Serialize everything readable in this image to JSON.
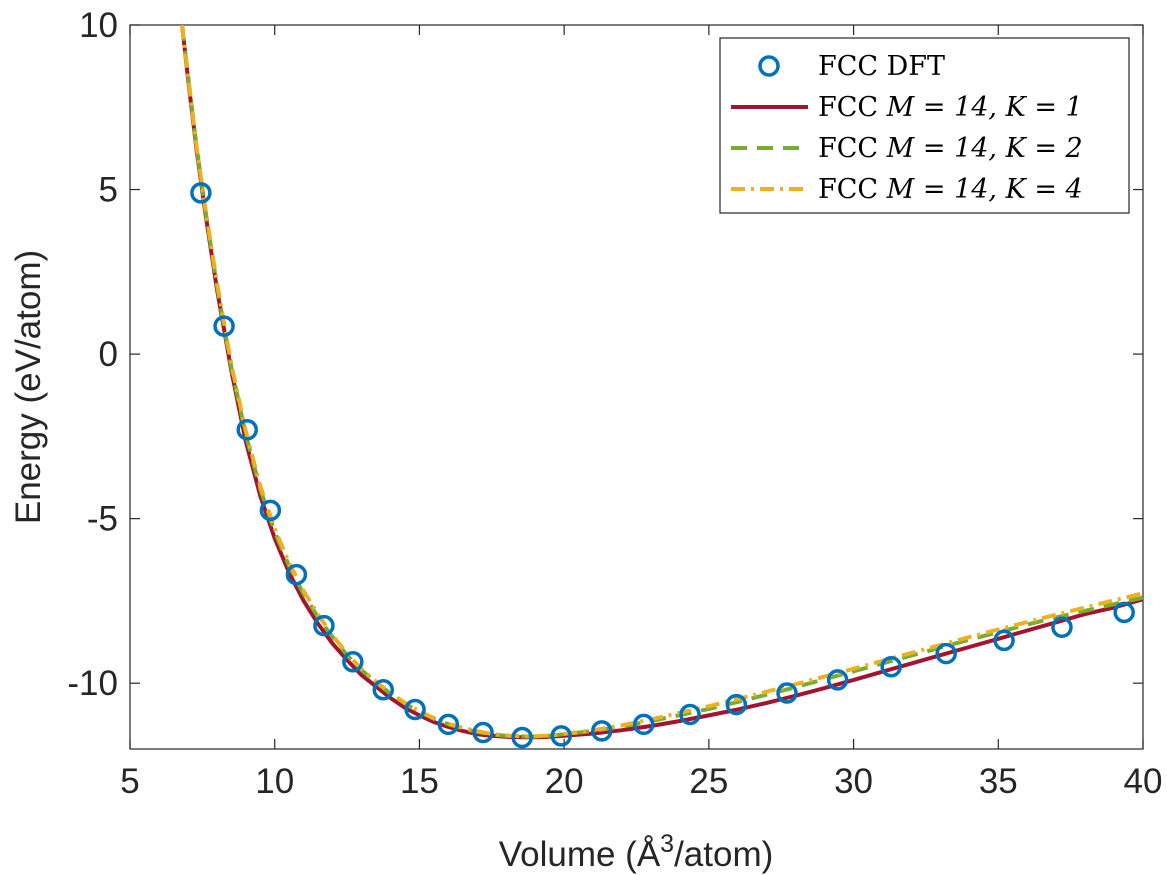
{
  "chart_data": {
    "type": "line",
    "title": "",
    "xlabel": "Volume (Å",
    "xlabel_sup": "3",
    "xlabel_suffix": "/atom)",
    "ylabel": "Energy (eV/atom)",
    "xlim": [
      5,
      40
    ],
    "ylim": [
      -12,
      10
    ],
    "xticks": [
      5,
      10,
      15,
      20,
      25,
      30,
      35,
      40
    ],
    "yticks": [
      -10,
      -5,
      0,
      5,
      10
    ],
    "legend_position": "top-right",
    "colors": {
      "dft": "#0072BD",
      "k1": "#A2142F",
      "k2": "#77AC30",
      "k4": "#EDB120"
    },
    "series": [
      {
        "name": "FCC DFT",
        "label_text": "FCC DFT",
        "label_math": "",
        "style": "markers-circle",
        "color_key": "dft",
        "x": [
          7.45,
          8.25,
          9.05,
          9.85,
          10.75,
          11.7,
          12.7,
          13.75,
          14.85,
          16.0,
          17.2,
          18.55,
          19.9,
          21.3,
          22.75,
          24.35,
          25.95,
          27.7,
          29.45,
          31.3,
          33.2,
          35.2,
          37.2,
          39.35
        ],
        "y": [
          4.9,
          0.85,
          -2.3,
          -4.75,
          -6.7,
          -8.25,
          -9.35,
          -10.2,
          -10.8,
          -11.25,
          -11.5,
          -11.65,
          -11.6,
          -11.45,
          -11.25,
          -10.95,
          -10.65,
          -10.3,
          -9.9,
          -9.5,
          -9.1,
          -8.7,
          -8.3,
          -7.85
        ]
      },
      {
        "name": "FCC M = 14, K = 1",
        "label_text": "FCC ",
        "label_math": "M = 14, K = 1",
        "style": "solid",
        "color_key": "k1",
        "x": [
          6.8,
          7.0,
          7.3,
          7.6,
          8.0,
          8.5,
          9.0,
          9.5,
          10.0,
          10.5,
          11.0,
          11.5,
          12.0,
          12.5,
          13.0,
          13.5,
          14.0,
          14.5,
          15.0,
          15.5,
          16.0,
          16.5,
          17.0,
          17.5,
          18.0,
          18.5,
          19.0,
          19.5,
          20.0,
          21.0,
          22.0,
          23.0,
          24.0,
          25.0,
          26.0,
          27.0,
          28.0,
          29.0,
          30.0,
          31.0,
          32.0,
          33.0,
          34.0,
          35.0,
          36.0,
          37.0,
          38.0,
          39.0,
          40.0
        ],
        "y": [
          10.0,
          8.4,
          6.2,
          4.3,
          2.0,
          -0.5,
          -2.65,
          -4.3,
          -5.6,
          -6.65,
          -7.5,
          -8.2,
          -8.8,
          -9.3,
          -9.75,
          -10.1,
          -10.45,
          -10.75,
          -10.98,
          -11.18,
          -11.33,
          -11.45,
          -11.55,
          -11.6,
          -11.63,
          -11.64,
          -11.64,
          -11.63,
          -11.6,
          -11.53,
          -11.43,
          -11.3,
          -11.15,
          -10.98,
          -10.8,
          -10.6,
          -10.38,
          -10.15,
          -9.9,
          -9.65,
          -9.4,
          -9.15,
          -8.9,
          -8.65,
          -8.4,
          -8.15,
          -7.9,
          -7.7,
          -7.45
        ]
      },
      {
        "name": "FCC M = 14, K = 2",
        "label_text": "FCC ",
        "label_math": "M = 14, K = 2",
        "style": "dashed",
        "color_key": "k2",
        "x": [
          6.8,
          7.0,
          7.3,
          7.6,
          8.0,
          8.5,
          9.0,
          9.5,
          10.0,
          10.5,
          11.0,
          11.5,
          12.0,
          12.5,
          13.0,
          13.5,
          14.0,
          14.5,
          15.0,
          15.5,
          16.0,
          16.5,
          17.0,
          17.5,
          18.0,
          18.5,
          19.0,
          19.5,
          20.0,
          21.0,
          22.0,
          23.0,
          24.0,
          25.0,
          26.0,
          27.0,
          28.0,
          29.0,
          30.0,
          31.0,
          32.0,
          33.0,
          34.0,
          35.0,
          36.0,
          37.0,
          38.0,
          39.0,
          40.0
        ],
        "y": [
          10.0,
          8.5,
          6.3,
          4.4,
          2.1,
          -0.4,
          -2.45,
          -4.1,
          -5.4,
          -6.45,
          -7.3,
          -8.0,
          -8.6,
          -9.15,
          -9.6,
          -9.98,
          -10.32,
          -10.62,
          -10.87,
          -11.08,
          -11.25,
          -11.38,
          -11.48,
          -11.56,
          -11.6,
          -11.62,
          -11.62,
          -11.6,
          -11.55,
          -11.45,
          -11.32,
          -11.15,
          -10.97,
          -10.78,
          -10.57,
          -10.35,
          -10.12,
          -9.88,
          -9.64,
          -9.4,
          -9.16,
          -8.92,
          -8.68,
          -8.45,
          -8.22,
          -8.0,
          -7.8,
          -7.6,
          -7.4
        ]
      },
      {
        "name": "FCC M = 14, K = 4",
        "label_text": "FCC ",
        "label_math": "M = 14, K = 4",
        "style": "dashdot",
        "color_key": "k4",
        "x": [
          6.8,
          7.0,
          7.3,
          7.6,
          8.0,
          8.5,
          9.0,
          9.5,
          10.0,
          10.5,
          11.0,
          11.5,
          12.0,
          12.5,
          13.0,
          13.5,
          14.0,
          14.5,
          15.0,
          15.5,
          16.0,
          16.5,
          17.0,
          17.5,
          18.0,
          18.5,
          19.0,
          19.5,
          20.0,
          21.0,
          22.0,
          23.0,
          24.0,
          25.0,
          26.0,
          27.0,
          28.0,
          29.0,
          30.0,
          31.0,
          32.0,
          33.0,
          34.0,
          35.0,
          36.0,
          37.0,
          38.0,
          39.0,
          40.0
        ],
        "y": [
          10.0,
          8.5,
          6.3,
          4.45,
          2.2,
          -0.3,
          -2.35,
          -4.0,
          -5.3,
          -6.35,
          -7.2,
          -7.92,
          -8.55,
          -9.1,
          -9.57,
          -9.95,
          -10.3,
          -10.6,
          -10.85,
          -11.06,
          -11.23,
          -11.36,
          -11.46,
          -11.54,
          -11.59,
          -11.61,
          -11.61,
          -11.59,
          -11.54,
          -11.43,
          -11.28,
          -11.1,
          -10.9,
          -10.7,
          -10.48,
          -10.26,
          -10.03,
          -9.8,
          -9.56,
          -9.32,
          -9.08,
          -8.84,
          -8.6,
          -8.37,
          -8.14,
          -7.92,
          -7.7,
          -7.48,
          -7.27
        ]
      }
    ]
  }
}
